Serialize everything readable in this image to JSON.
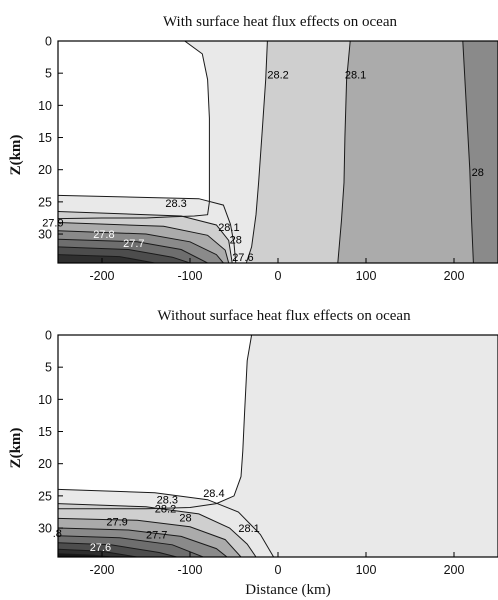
{
  "chart_data": [
    {
      "type": "contour",
      "title": "With surface heat flux effects on ocean",
      "ylabel": "Z(km)",
      "xlabel": "",
      "xlim": [
        -250,
        250
      ],
      "ylim": [
        34.5,
        0
      ],
      "x_ticks": [
        -200,
        -100,
        0,
        100,
        200
      ],
      "y_ticks": [
        0,
        5,
        10,
        15,
        20,
        25,
        30
      ],
      "contour_labels": [
        "28.3",
        "28.2",
        "28.1",
        "28",
        "27.9",
        "27.8",
        "27.7",
        "28.1",
        "28",
        "27.6"
      ]
    },
    {
      "type": "contour",
      "title": "Without surface heat flux effects on ocean",
      "ylabel": "Z(km)",
      "xlabel": "Distance (km)",
      "xlim": [
        -250,
        250
      ],
      "ylim": [
        34.5,
        0
      ],
      "x_ticks": [
        -200,
        -100,
        0,
        100,
        200
      ],
      "y_ticks": [
        0,
        5,
        10,
        15,
        20,
        25,
        30
      ],
      "contour_labels": [
        "28.4",
        "28.3",
        "28.2",
        "28",
        "27.9",
        "27.7",
        "27.6",
        ".8",
        "28.1"
      ]
    }
  ],
  "colors": {
    "lightest": "#ffffff",
    "light": "#e9e9e9",
    "mid": "#cfcfcf",
    "midDark": "#ababab",
    "dark": "#8a8a8a",
    "cold1": "#6e6e6e",
    "cold2": "#4d4d4d",
    "cold3": "#2f2f2f",
    "cold4": "#161616"
  }
}
